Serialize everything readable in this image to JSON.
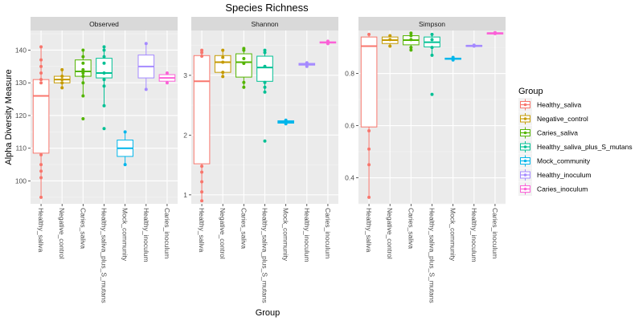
{
  "chart_data": {
    "type": "box",
    "title": "Species Richness",
    "xlabel": "Group",
    "ylabel": "Alpha Diversity Measure",
    "categories": [
      "Healthy_saliva",
      "Negative_control",
      "Caries_saliva",
      "Healthy_saliva_plus_S_mutans",
      "Mock_community",
      "Healthy_inoculum",
      "Caries_inoculum"
    ],
    "legend": {
      "title": "Group",
      "position": "right",
      "entries": [
        "Healthy_saliva",
        "Negative_control",
        "Caries_saliva",
        "Healthy_saliva_plus_S_mutans",
        "Mock_community",
        "Healthy_inoculum",
        "Caries_inoculum"
      ]
    },
    "colors": {
      "Healthy_saliva": "#F8766D",
      "Negative_control": "#C49A00",
      "Caries_saliva": "#53B400",
      "Healthy_saliva_plus_S_mutans": "#00C094",
      "Mock_community": "#00B6EB",
      "Healthy_inoculum": "#A58AFF",
      "Caries_inoculum": "#FB61D7"
    },
    "grid": true,
    "panels": [
      {
        "name": "Observed",
        "ylim": [
          93,
          146
        ],
        "ticks": [
          100,
          110,
          120,
          130,
          140
        ],
        "tick_labels": [
          "100",
          "110",
          "120",
          "130",
          "140"
        ],
        "boxes": [
          {
            "group": "Healthy_saliva",
            "q1": 108.5,
            "median": 126,
            "q3": 131,
            "lower": 95,
            "upper": 141
          },
          {
            "group": "Negative_control",
            "q1": 130,
            "median": 131,
            "q3": 132,
            "lower": 128.5,
            "upper": 134
          },
          {
            "group": "Caries_saliva",
            "q1": 132,
            "median": 133.5,
            "q3": 137,
            "lower": 126,
            "upper": 140
          },
          {
            "group": "Healthy_saliva_plus_S_mutans",
            "q1": 131.5,
            "median": 133,
            "q3": 137.5,
            "lower": 123,
            "upper": 141
          },
          {
            "group": "Mock_community",
            "q1": 107.5,
            "median": 110,
            "q3": 112.5,
            "lower": 105,
            "upper": 115
          },
          {
            "group": "Healthy_inoculum",
            "q1": 131.5,
            "median": 135,
            "q3": 138.5,
            "lower": 128,
            "upper": 142
          },
          {
            "group": "Caries_inoculum",
            "q1": 130.5,
            "median": 131.5,
            "q3": 132.5,
            "lower": 130,
            "upper": 133
          }
        ],
        "points": [
          {
            "group": "Healthy_saliva",
            "values": [
              141,
              137,
              135,
              133,
              131,
              130,
              108,
              105,
              103,
              101,
              95
            ]
          },
          {
            "group": "Negative_control",
            "values": [
              134,
              132,
              131,
              130,
              128.5
            ]
          },
          {
            "group": "Caries_saliva",
            "values": [
              140,
              138,
              136,
              134,
              133,
              132,
              130,
              126,
              119
            ]
          },
          {
            "group": "Healthy_saliva_plus_S_mutans",
            "values": [
              141,
              140,
              138,
              136,
              133,
              131,
              129,
              123,
              116
            ]
          },
          {
            "group": "Mock_community",
            "values": [
              115,
              105
            ]
          },
          {
            "group": "Healthy_inoculum",
            "values": [
              142,
              128
            ]
          },
          {
            "group": "Caries_inoculum",
            "values": [
              133,
              130
            ]
          }
        ]
      },
      {
        "name": "Shannon",
        "ylim": [
          0.85,
          3.75
        ],
        "ticks": [
          1,
          2,
          3
        ],
        "tick_labels": [
          "1",
          "2",
          "3"
        ],
        "boxes": [
          {
            "group": "Healthy_saliva",
            "q1": 1.52,
            "median": 2.9,
            "q3": 3.33,
            "lower": 0.9,
            "upper": 3.42
          },
          {
            "group": "Negative_control",
            "q1": 3.05,
            "median": 3.22,
            "q3": 3.33,
            "lower": 2.98,
            "upper": 3.42
          },
          {
            "group": "Caries_saliva",
            "q1": 2.97,
            "median": 3.22,
            "q3": 3.36,
            "lower": 2.8,
            "upper": 3.45
          },
          {
            "group": "Healthy_saliva_plus_S_mutans",
            "q1": 2.9,
            "median": 3.13,
            "q3": 3.32,
            "lower": 2.72,
            "upper": 3.42
          },
          {
            "group": "Mock_community",
            "q1": 2.2,
            "median": 2.22,
            "q3": 2.24,
            "lower": 2.19,
            "upper": 2.25
          },
          {
            "group": "Healthy_inoculum",
            "q1": 3.17,
            "median": 3.18,
            "q3": 3.2,
            "lower": 3.15,
            "upper": 3.21
          },
          {
            "group": "Caries_inoculum",
            "q1": 3.54,
            "median": 3.55,
            "q3": 3.56,
            "lower": 3.53,
            "upper": 3.57
          }
        ],
        "points": [
          {
            "group": "Healthy_saliva",
            "values": [
              3.42,
              3.38,
              3.32,
              1.48,
              1.38,
              1.22,
              1.05,
              0.9
            ]
          },
          {
            "group": "Negative_control",
            "values": [
              3.42,
              3.3,
              3.22,
              3.05,
              2.98
            ]
          },
          {
            "group": "Caries_saliva",
            "values": [
              3.45,
              3.42,
              3.28,
              3.2,
              2.88,
              2.8
            ]
          },
          {
            "group": "Healthy_saliva_plus_S_mutans",
            "values": [
              3.42,
              3.38,
              3.15,
              2.88,
              2.8,
              2.72,
              1.9
            ]
          },
          {
            "group": "Mock_community",
            "values": [
              2.25,
              2.19
            ]
          },
          {
            "group": "Healthy_inoculum",
            "values": [
              3.21,
              3.15
            ]
          },
          {
            "group": "Caries_inoculum",
            "values": [
              3.57,
              3.53
            ]
          }
        ]
      },
      {
        "name": "Simpson",
        "ylim": [
          0.3,
          0.965
        ],
        "ticks": [
          0.4,
          0.6,
          0.8
        ],
        "tick_labels": [
          "0.4",
          "0.6",
          "0.8"
        ],
        "boxes": [
          {
            "group": "Healthy_saliva",
            "q1": 0.595,
            "median": 0.905,
            "q3": 0.94,
            "lower": 0.325,
            "upper": 0.95
          },
          {
            "group": "Negative_control",
            "q1": 0.915,
            "median": 0.928,
            "q3": 0.94,
            "lower": 0.905,
            "upper": 0.945
          },
          {
            "group": "Caries_saliva",
            "q1": 0.91,
            "median": 0.928,
            "q3": 0.945,
            "lower": 0.89,
            "upper": 0.955
          },
          {
            "group": "Healthy_saliva_plus_S_mutans",
            "q1": 0.902,
            "median": 0.92,
            "q3": 0.94,
            "lower": 0.87,
            "upper": 0.95
          },
          {
            "group": "Mock_community",
            "q1": 0.855,
            "median": 0.857,
            "q3": 0.859,
            "lower": 0.852,
            "upper": 0.862
          },
          {
            "group": "Healthy_inoculum",
            "q1": 0.906,
            "median": 0.907,
            "q3": 0.908,
            "lower": 0.905,
            "upper": 0.909
          },
          {
            "group": "Caries_inoculum",
            "q1": 0.954,
            "median": 0.955,
            "q3": 0.956,
            "lower": 0.953,
            "upper": 0.957
          }
        ],
        "points": [
          {
            "group": "Healthy_saliva",
            "values": [
              0.95,
              0.58,
              0.51,
              0.45,
              0.325
            ]
          },
          {
            "group": "Negative_control",
            "values": [
              0.945,
              0.93,
              0.905
            ]
          },
          {
            "group": "Caries_saliva",
            "values": [
              0.955,
              0.945,
              0.93,
              0.9,
              0.89
            ]
          },
          {
            "group": "Healthy_saliva_plus_S_mutans",
            "values": [
              0.95,
              0.93,
              0.9,
              0.87,
              0.72
            ]
          },
          {
            "group": "Mock_community",
            "values": [
              0.862,
              0.852
            ]
          },
          {
            "group": "Healthy_inoculum",
            "values": [
              0.909,
              0.905
            ]
          },
          {
            "group": "Caries_inoculum",
            "values": [
              0.957,
              0.953
            ]
          }
        ]
      }
    ]
  }
}
